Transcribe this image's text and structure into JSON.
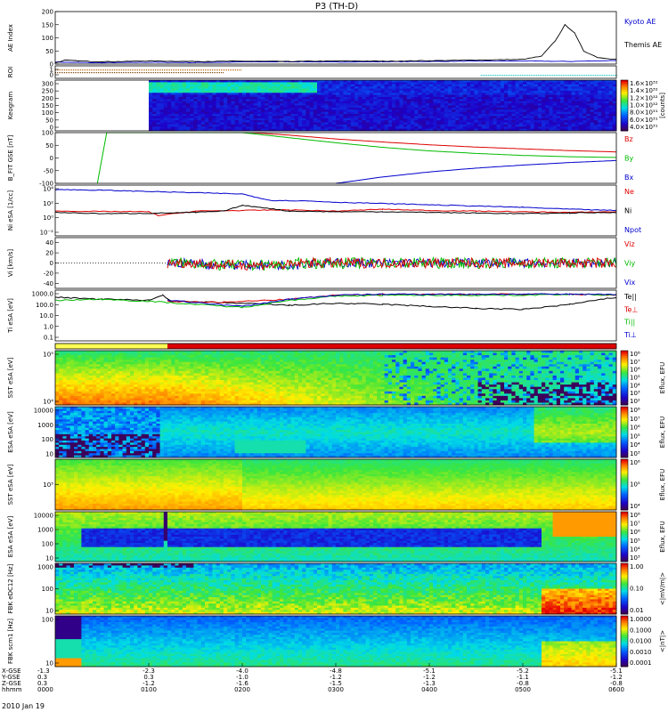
{
  "title": "P3 (TH-D)",
  "date": "2010 Jan 19",
  "chart_data": [
    {
      "type": "line",
      "panel": "ae",
      "ylabel": "AE Index",
      "yticks": [
        "200",
        "150",
        "100",
        "50",
        "0"
      ],
      "ylim": [
        0,
        200
      ],
      "series": [
        {
          "name": "Kyoto AE",
          "color": "#0000cc",
          "points": [
            [
              0,
              8
            ],
            [
              0.25,
              6
            ],
            [
              0.5,
              5
            ],
            [
              0.75,
              6
            ],
            [
              1,
              7
            ],
            [
              1.5,
              6
            ],
            [
              2,
              8
            ],
            [
              2.5,
              9
            ],
            [
              3,
              8
            ],
            [
              3.5,
              9
            ],
            [
              4,
              10
            ],
            [
              4.5,
              11
            ],
            [
              5,
              12
            ],
            [
              5.5,
              10
            ],
            [
              6,
              14
            ]
          ]
        },
        {
          "name": "Themis AE",
          "color": "#000000",
          "points": [
            [
              0,
              4
            ],
            [
              0.1,
              15
            ],
            [
              0.25,
              12
            ],
            [
              0.4,
              10
            ],
            [
              0.6,
              9
            ],
            [
              1,
              12
            ],
            [
              1.5,
              10
            ],
            [
              2,
              11
            ],
            [
              2.5,
              10
            ],
            [
              3,
              12
            ],
            [
              3.5,
              11
            ],
            [
              4,
              13
            ],
            [
              4.5,
              15
            ],
            [
              5,
              18
            ],
            [
              5.2,
              30
            ],
            [
              5.35,
              90
            ],
            [
              5.45,
              150
            ],
            [
              5.55,
              120
            ],
            [
              5.65,
              50
            ],
            [
              5.8,
              25
            ],
            [
              6,
              18
            ]
          ]
        }
      ]
    },
    {
      "type": "bar",
      "panel": "roi",
      "ylabel": "ROI",
      "yticks": [
        "1",
        "0"
      ],
      "series": [
        {
          "color": "#c06000",
          "start": 0,
          "end": 2.0
        },
        {
          "color": "#7a3f00",
          "start": 0,
          "end": 1.8
        },
        {
          "color": "#00c0c0",
          "start": 4.55,
          "end": 6
        }
      ]
    },
    {
      "type": "heatmap",
      "panel": "keogram",
      "ylabel": "Keogram",
      "yticks": [
        "300",
        "250",
        "200",
        "150",
        "100",
        "50",
        "0"
      ],
      "colorbar": {
        "ticks": [
          "1.6×10³²",
          "1.4×10³²",
          "1.2×10³²",
          "1.0×10³²",
          "8.0×10³¹",
          "6.0×10³¹",
          "4.0×10³¹"
        ],
        "label": "[counts]"
      }
    },
    {
      "type": "line",
      "panel": "bfit",
      "ylabel": "B_FIT GSE [nT]",
      "yticks": [
        "100",
        "50",
        "0",
        "-50",
        "-100"
      ],
      "ylim": [
        -100,
        100
      ],
      "series": [
        {
          "name": "Bz",
          "color": "#dd0000",
          "points": [
            [
              2.1,
              100
            ],
            [
              2.5,
              90
            ],
            [
              3,
              75
            ],
            [
              3.5,
              63
            ],
            [
              4,
              52
            ],
            [
              4.5,
              43
            ],
            [
              5,
              36
            ],
            [
              5.5,
              29
            ],
            [
              6,
              24
            ]
          ]
        },
        {
          "name": "By",
          "color": "#00bb00",
          "points": [
            [
              0.45,
              -100
            ],
            [
              0.55,
              100
            ],
            [
              1,
              100
            ],
            [
              1.5,
              100
            ],
            [
              2,
              100
            ],
            [
              2.5,
              80
            ],
            [
              3,
              60
            ],
            [
              3.5,
              42
            ],
            [
              4,
              28
            ],
            [
              4.5,
              18
            ],
            [
              5,
              10
            ],
            [
              5.5,
              5
            ],
            [
              6,
              2
            ]
          ]
        },
        {
          "name": "Bx",
          "color": "#0000cc",
          "points": [
            [
              3,
              -100
            ],
            [
              3.5,
              -75
            ],
            [
              4,
              -55
            ],
            [
              4.5,
              -40
            ],
            [
              5,
              -28
            ],
            [
              5.5,
              -18
            ],
            [
              6,
              -10
            ]
          ]
        }
      ]
    },
    {
      "type": "line",
      "panel": "density",
      "ylabel": "Ni eSA [1/cc]",
      "yticks": [
        "10⁴",
        "10²",
        "10⁰",
        "10⁻²"
      ],
      "series": [
        {
          "name": "Ne",
          "color": "#dd0000",
          "points": [
            [
              0,
              0.9
            ],
            [
              0.5,
              0.85
            ],
            [
              1,
              0.8
            ],
            [
              1.1,
              0.2
            ],
            [
              1.5,
              0.9
            ],
            [
              2,
              1.0
            ],
            [
              2.5,
              1.1
            ],
            [
              3,
              0.9
            ],
            [
              3.5,
              1.2
            ],
            [
              4,
              1.0
            ],
            [
              4.5,
              0.9
            ],
            [
              5,
              0.8
            ],
            [
              5.5,
              0.7
            ],
            [
              6,
              0.8
            ]
          ]
        },
        {
          "name": "Ni",
          "color": "#000000",
          "points": [
            [
              0,
              0.7
            ],
            [
              0.5,
              0.5
            ],
            [
              1,
              0.55
            ],
            [
              1.5,
              0.7
            ],
            [
              1.8,
              0.9
            ],
            [
              2,
              1.8
            ],
            [
              2.2,
              1.5
            ],
            [
              2.5,
              0.9
            ],
            [
              3,
              0.8
            ],
            [
              3.5,
              0.8
            ],
            [
              4,
              0.7
            ],
            [
              4.5,
              0.6
            ],
            [
              5,
              0.5
            ],
            [
              5.5,
              0.6
            ],
            [
              6,
              0.7
            ]
          ]
        },
        {
          "name": "Npot",
          "color": "#0000cc",
          "points": [
            [
              0,
              4.3
            ],
            [
              0.5,
              4.2
            ],
            [
              1,
              4.0
            ],
            [
              1.5,
              3.8
            ],
            [
              2,
              3.6
            ],
            [
              2.3,
              2.6
            ],
            [
              2.7,
              2.5
            ],
            [
              3,
              2.3
            ],
            [
              3.5,
              2.1
            ],
            [
              4,
              1.9
            ],
            [
              4.5,
              1.7
            ],
            [
              5,
              1.5
            ],
            [
              5.5,
              1.2
            ],
            [
              6,
              1.0
            ]
          ]
        }
      ]
    },
    {
      "type": "line",
      "panel": "velocity",
      "ylabel": "Vi [km/s]",
      "yticks": [
        "40",
        "20",
        "0",
        "-20",
        "-40"
      ],
      "ylim": [
        -50,
        50
      ],
      "series": [
        {
          "name": "Viz",
          "color": "#dd0000"
        },
        {
          "name": "Viy",
          "color": "#00bb00"
        },
        {
          "name": "Vix",
          "color": "#0000cc"
        }
      ]
    },
    {
      "type": "line",
      "panel": "temperature",
      "ylabel": "Ti eSA [eV]",
      "yticks": [
        "1000.0",
        "100.0",
        "10.0",
        "1.0",
        "0.1"
      ],
      "series": [
        {
          "name": "Te||",
          "color": "#000000",
          "points": [
            [
              0,
              3.0
            ],
            [
              0.5,
              2.8
            ],
            [
              1,
              2.7
            ],
            [
              1.15,
              3.2
            ],
            [
              1.25,
              2.6
            ],
            [
              2,
              2.4
            ],
            [
              2.5,
              2.2
            ],
            [
              3,
              2.4
            ],
            [
              3.5,
              2.3
            ],
            [
              4,
              2.1
            ],
            [
              4.5,
              1.9
            ],
            [
              5,
              1.8
            ],
            [
              5.5,
              2.3
            ],
            [
              6,
              3.0
            ]
          ]
        },
        {
          "name": "Te⊥",
          "color": "#dd0000",
          "points": [
            [
              1.2,
              2.6
            ],
            [
              1.8,
              2.5
            ],
            [
              2.5,
              2.8
            ],
            [
              3,
              3.2
            ],
            [
              3.5,
              3.3
            ],
            [
              4,
              3.3
            ],
            [
              4.5,
              3.3
            ],
            [
              5,
              3.3
            ],
            [
              5.5,
              3.3
            ],
            [
              6,
              3.2
            ]
          ]
        },
        {
          "name": "Ti||",
          "color": "#00bb00",
          "points": [
            [
              0,
              2.7
            ],
            [
              0.5,
              2.8
            ],
            [
              1,
              2.6
            ],
            [
              1.5,
              2.3
            ],
            [
              2,
              2.0
            ],
            [
              2.5,
              2.7
            ],
            [
              3,
              3.1
            ],
            [
              3.5,
              3.2
            ],
            [
              4,
              3.2
            ],
            [
              4.5,
              3.2
            ],
            [
              5,
              3.2
            ],
            [
              5.5,
              3.3
            ],
            [
              6,
              3.2
            ]
          ]
        },
        {
          "name": "Ti⊥",
          "color": "#0000cc",
          "points": [
            [
              1.2,
              2.7
            ],
            [
              2,
              2.1
            ],
            [
              2.5,
              2.8
            ],
            [
              3,
              3.2
            ],
            [
              3.5,
              3.3
            ],
            [
              4,
              3.3
            ],
            [
              4.5,
              3.3
            ],
            [
              5,
              3.3
            ],
            [
              5.5,
              3.3
            ],
            [
              6,
              3.3
            ]
          ]
        }
      ]
    },
    {
      "type": "bar",
      "panel": "mode",
      "series": [
        {
          "color": "#ffff55",
          "start": 0,
          "end": 1.2
        },
        {
          "color": "#dd0000",
          "start": 1.2,
          "end": 6
        }
      ]
    },
    {
      "type": "heatmap",
      "panel": "sst-e",
      "ylabel": "SST eSA [eV]",
      "yticks": [
        "10⁵",
        "10⁴"
      ],
      "colorbar": {
        "ticks": [
          "10⁸",
          "10⁷",
          "10⁶",
          "10⁵",
          "10⁴",
          "10³",
          "10²"
        ],
        "label": "Eflux, EFU"
      }
    },
    {
      "type": "heatmap",
      "panel": "esa-e",
      "ylabel": "ESA eSA [eV]",
      "yticks": [
        "10000",
        "1000",
        "100",
        "10"
      ],
      "colorbar": {
        "ticks": [
          "10⁸",
          "10⁷",
          "10⁶",
          "10⁵",
          "10⁴",
          "10³"
        ],
        "label": "Eflux, EFU"
      }
    },
    {
      "type": "heatmap",
      "panel": "sst-i",
      "ylabel": "SST eSA [eV]",
      "yticks": [
        "10⁵"
      ],
      "colorbar": {
        "ticks": [
          "10⁶",
          "10⁵",
          "10⁴"
        ],
        "label": "Eflux, EFU"
      }
    },
    {
      "type": "heatmap",
      "panel": "esa-i",
      "ylabel": "ESA eSA [eV]",
      "yticks": [
        "10000",
        "1000",
        "100",
        "10"
      ],
      "colorbar": {
        "ticks": [
          "10⁸",
          "10⁷",
          "10⁶",
          "10⁵",
          "10⁴",
          "10³"
        ],
        "label": "Eflux, EFU"
      }
    },
    {
      "type": "heatmap",
      "panel": "fbk-e",
      "ylabel": "FBK eDC12 [Hz]",
      "yticks": [
        "1000",
        "100",
        "10"
      ],
      "colorbar": {
        "ticks": [
          "1.00",
          "0.10",
          "0.01"
        ],
        "label": "<|mV/m|>"
      }
    },
    {
      "type": "heatmap",
      "panel": "fbk-b",
      "ylabel": "FBK scm1 [Hz]",
      "yticks": [
        "100",
        "10"
      ],
      "colorbar": {
        "ticks": [
          "1.0000",
          "0.1000",
          "0.0100",
          "0.0010",
          "0.0001"
        ],
        "label": "<|nT|>"
      }
    }
  ],
  "xaxis": {
    "row_labels": [
      "X-GSE",
      "Y-GSE",
      "Z-GSE",
      "hhmm"
    ],
    "ticks": [
      {
        "x": "-1.3",
        "y": "0.3",
        "z": "0.3",
        "time": "0000"
      },
      {
        "x": "-2.3",
        "y": "0.3",
        "z": "-1.2",
        "time": "0100"
      },
      {
        "x": "-4.0",
        "y": "-1.0",
        "z": "-1.6",
        "time": "0200"
      },
      {
        "x": "-4.8",
        "y": "-1.2",
        "z": "-1.5",
        "time": "0300"
      },
      {
        "x": "-5.1",
        "y": "-1.2",
        "z": "-1.3",
        "time": "0400"
      },
      {
        "x": "-5.2",
        "y": "-1.1",
        "z": "-0.8",
        "time": "0500"
      },
      {
        "x": "-5.1",
        "y": "-1.2",
        "z": "-0.8",
        "time": "0600"
      }
    ]
  }
}
